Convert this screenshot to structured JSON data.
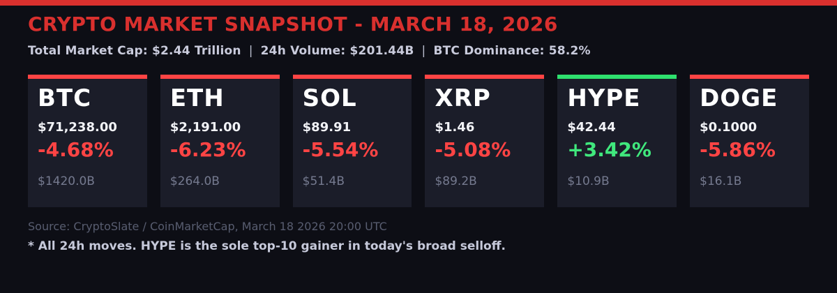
{
  "header": {
    "title": "CRYPTO MARKET SNAPSHOT - MARCH 18, 2026",
    "separator": "|",
    "stats": [
      {
        "label": "Total Market Cap:",
        "value": "$2.44 Trillion"
      },
      {
        "label": "24h Volume:",
        "value": "$201.44B"
      },
      {
        "label": "BTC Dominance:",
        "value": "58.2%"
      }
    ]
  },
  "cards": [
    {
      "symbol": "BTC",
      "price": "$71,238.00",
      "change": "-4.68%",
      "market_cap": "$1420.0B",
      "direction": "down"
    },
    {
      "symbol": "ETH",
      "price": "$2,191.00",
      "change": "-6.23%",
      "market_cap": "$264.0B",
      "direction": "down"
    },
    {
      "symbol": "SOL",
      "price": "$89.91",
      "change": "-5.54%",
      "market_cap": "$51.4B",
      "direction": "down"
    },
    {
      "symbol": "XRP",
      "price": "$1.46",
      "change": "-5.08%",
      "market_cap": "$89.2B",
      "direction": "down"
    },
    {
      "symbol": "HYPE",
      "price": "$42.44",
      "change": "+3.42%",
      "market_cap": "$10.9B",
      "direction": "up"
    },
    {
      "symbol": "DOGE",
      "price": "$0.1000",
      "change": "-5.86%",
      "market_cap": "$16.1B",
      "direction": "down"
    }
  ],
  "footer": {
    "source": "Source: CryptoSlate / CoinMarketCap, March 18 2026 20:00 UTC",
    "note": "* All 24h moves. HYPE is the sole top-10 gainer in today's broad selloff."
  },
  "colors": {
    "page_bg": "#0d0e15",
    "card_bg": "#1b1d29",
    "accent_red": "#d9302e",
    "loss_red": "#ff4444",
    "gain_green": "#40e87d",
    "gain_green_bar": "#2ee06e"
  }
}
